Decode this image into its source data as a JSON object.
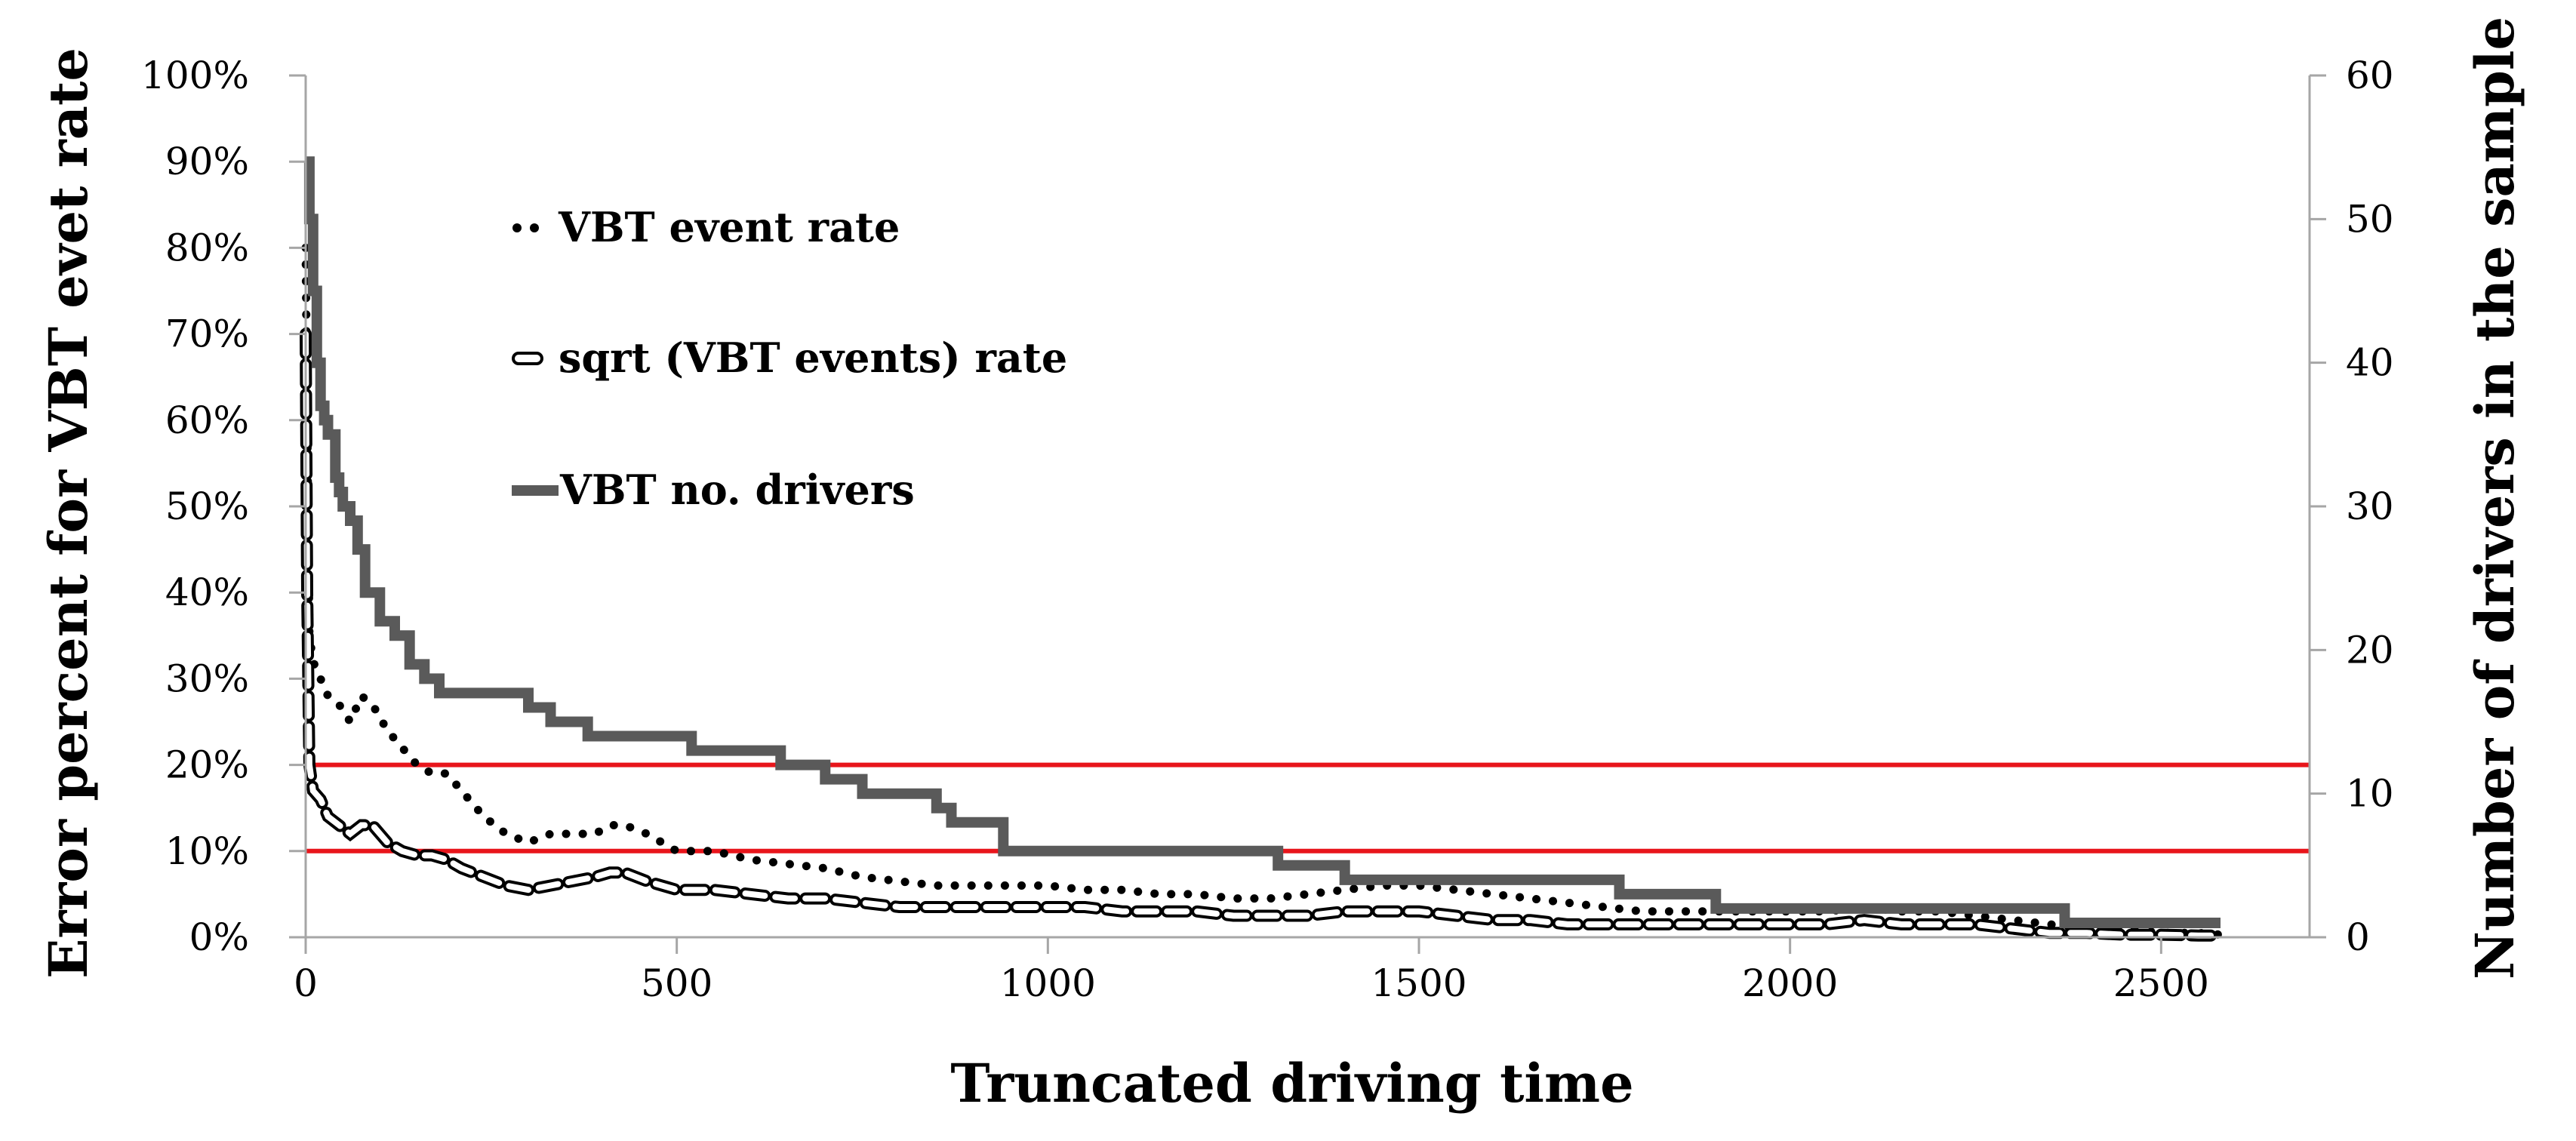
{
  "chart_data": {
    "type": "line",
    "title": "",
    "xlabel": "Truncated driving time",
    "ylabel_left": "Error percent for VBT evet rate",
    "ylabel_right": "Number of drivers in the sample",
    "xlim": [
      0,
      2700
    ],
    "ylim_left": [
      0,
      100
    ],
    "ylim_right": [
      0,
      60
    ],
    "x_ticks": [
      0,
      500,
      1000,
      1500,
      2000,
      2500
    ],
    "x_tick_labels": [
      "0",
      "500",
      "1000",
      "1500",
      "2000",
      "2500"
    ],
    "y_left_ticks": [
      0,
      10,
      20,
      30,
      40,
      50,
      60,
      70,
      80,
      90,
      100
    ],
    "y_left_tick_labels": [
      "0%",
      "10%",
      "20%",
      "30%",
      "40%",
      "50%",
      "60%",
      "70%",
      "80%",
      "90%",
      "100%"
    ],
    "y_right_ticks": [
      0,
      10,
      20,
      30,
      40,
      50,
      60
    ],
    "y_right_tick_labels": [
      "0",
      "10",
      "20",
      "30",
      "40",
      "50",
      "60"
    ],
    "grid": false,
    "legend_position": "top-left",
    "reference_lines": [
      {
        "axis": "left",
        "y": 20,
        "color": "#e8151b"
      },
      {
        "axis": "left",
        "y": 10,
        "color": "#e8151b"
      }
    ],
    "series": [
      {
        "name": "VBT event rate",
        "style": "dotted",
        "axis": "left",
        "color": "#000000",
        "x": [
          0,
          2,
          5,
          10,
          20,
          30,
          45,
          60,
          75,
          90,
          110,
          130,
          150,
          170,
          190,
          210,
          240,
          270,
          300,
          330,
          360,
          390,
          410,
          430,
          460,
          500,
          550,
          600,
          650,
          700,
          750,
          800,
          850,
          900,
          950,
          1000,
          1050,
          1100,
          1150,
          1200,
          1250,
          1300,
          1350,
          1400,
          1450,
          1500,
          1550,
          1600,
          1650,
          1700,
          1750,
          1800,
          1850,
          1900,
          1950,
          2000,
          2050,
          2100,
          2150,
          2200,
          2250,
          2300,
          2350,
          2400,
          2450,
          2500,
          2550,
          2580
        ],
        "values": [
          80,
          60,
          35,
          32,
          30,
          28,
          27,
          25,
          28,
          27,
          24,
          22,
          20,
          19,
          19,
          17,
          14,
          12,
          11,
          12,
          12,
          12,
          13,
          13,
          12,
          10,
          10,
          9,
          8.5,
          8,
          7,
          6.5,
          6,
          6,
          6,
          6,
          5.5,
          5.5,
          5,
          5,
          4.5,
          4.5,
          5,
          5.5,
          6,
          6,
          5.5,
          5,
          4.5,
          4,
          3.5,
          3,
          3,
          3,
          3,
          3,
          3,
          3.5,
          3,
          3,
          2.5,
          2,
          1.5,
          1,
          1,
          0.5,
          0.5,
          0.3
        ]
      },
      {
        "name": "sqrt (VBT events) rate",
        "style": "dashed-open",
        "axis": "left",
        "color": "#000000",
        "x": [
          0,
          2,
          5,
          10,
          20,
          30,
          45,
          60,
          75,
          90,
          110,
          130,
          150,
          170,
          190,
          210,
          240,
          270,
          300,
          330,
          360,
          390,
          410,
          430,
          460,
          500,
          550,
          600,
          650,
          700,
          750,
          800,
          850,
          900,
          950,
          1000,
          1050,
          1100,
          1150,
          1200,
          1250,
          1300,
          1350,
          1400,
          1450,
          1500,
          1550,
          1600,
          1650,
          1700,
          1750,
          1800,
          1850,
          1900,
          1950,
          2000,
          2050,
          2100,
          2150,
          2200,
          2250,
          2300,
          2350,
          2400,
          2450,
          2500,
          2550,
          2580
        ],
        "values": [
          70,
          40,
          20,
          17,
          16,
          14,
          13,
          12,
          13,
          13,
          11,
          10,
          9.5,
          9.5,
          9,
          8,
          7,
          6,
          5.5,
          6,
          6.5,
          7,
          7.5,
          7.5,
          6.5,
          5.5,
          5.5,
          5,
          4.5,
          4.5,
          4,
          3.5,
          3.5,
          3.5,
          3.5,
          3.5,
          3.5,
          3,
          3,
          3,
          2.5,
          2.5,
          2.5,
          3,
          3,
          3,
          2.5,
          2,
          2,
          1.5,
          1.5,
          1.5,
          1.5,
          1.5,
          1.5,
          1.5,
          1.5,
          2,
          1.5,
          1.5,
          1.5,
          1,
          0.5,
          0.5,
          0.3,
          0.3,
          0.2,
          0.2
        ]
      },
      {
        "name": "VBT no. drivers",
        "style": "solid-step",
        "axis": "right",
        "color": "#5a5a5a",
        "x": [
          0,
          5,
          10,
          15,
          20,
          25,
          30,
          40,
          45,
          50,
          60,
          70,
          80,
          100,
          120,
          140,
          160,
          180,
          200,
          250,
          300,
          330,
          380,
          450,
          520,
          580,
          640,
          700,
          750,
          800,
          850,
          870,
          940,
          1000,
          1100,
          1200,
          1310,
          1400,
          1500,
          1600,
          1700,
          1770,
          1800,
          1900,
          2000,
          2100,
          2200,
          2300,
          2370,
          2450,
          2580
        ],
        "values": [
          54,
          50,
          45,
          40,
          37,
          36,
          35,
          32,
          31,
          30,
          29,
          27,
          24,
          22,
          21,
          19,
          18,
          17,
          17,
          17,
          16,
          15,
          14,
          14,
          13,
          13,
          12,
          11,
          10,
          10,
          9,
          8,
          6,
          6,
          6,
          6,
          5,
          4,
          4,
          4,
          4,
          3,
          3,
          2,
          2,
          2,
          2,
          2,
          1,
          1,
          1
        ]
      }
    ]
  },
  "legend": {
    "items": [
      {
        "label": "VBT event rate"
      },
      {
        "label": "sqrt (VBT events) rate"
      },
      {
        "label": "VBT no. drivers"
      }
    ]
  }
}
